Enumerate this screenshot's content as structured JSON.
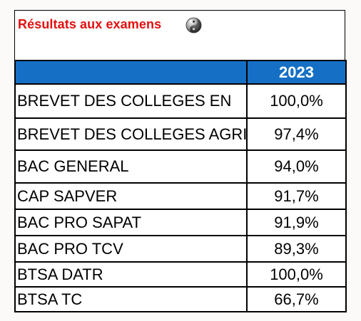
{
  "header": {
    "title": "Résultats aux examens",
    "icon": "yin-yang-ball-icon"
  },
  "table": {
    "year_header": "2023",
    "header_color": "#1570c5",
    "rows": [
      {
        "exam": "BREVET DES COLLEGES EN",
        "rate": "100,0%"
      },
      {
        "exam": "BREVET DES COLLEGES AGRI",
        "rate": "97,4%"
      },
      {
        "exam": "BAC GENERAL",
        "rate": "94,0%"
      },
      {
        "exam": "CAP SAPVER",
        "rate": "91,7%"
      },
      {
        "exam": "BAC PRO SAPAT",
        "rate": "91,9%"
      },
      {
        "exam": "BAC PRO TCV",
        "rate": "89,3%"
      },
      {
        "exam": "BTSA DATR",
        "rate": "100,0%"
      },
      {
        "exam": "BTSA TC",
        "rate": "66,7%"
      }
    ]
  },
  "colors": {
    "title": "#e1110f",
    "header_bg": "#1570c5",
    "header_text": "#ffffff"
  }
}
